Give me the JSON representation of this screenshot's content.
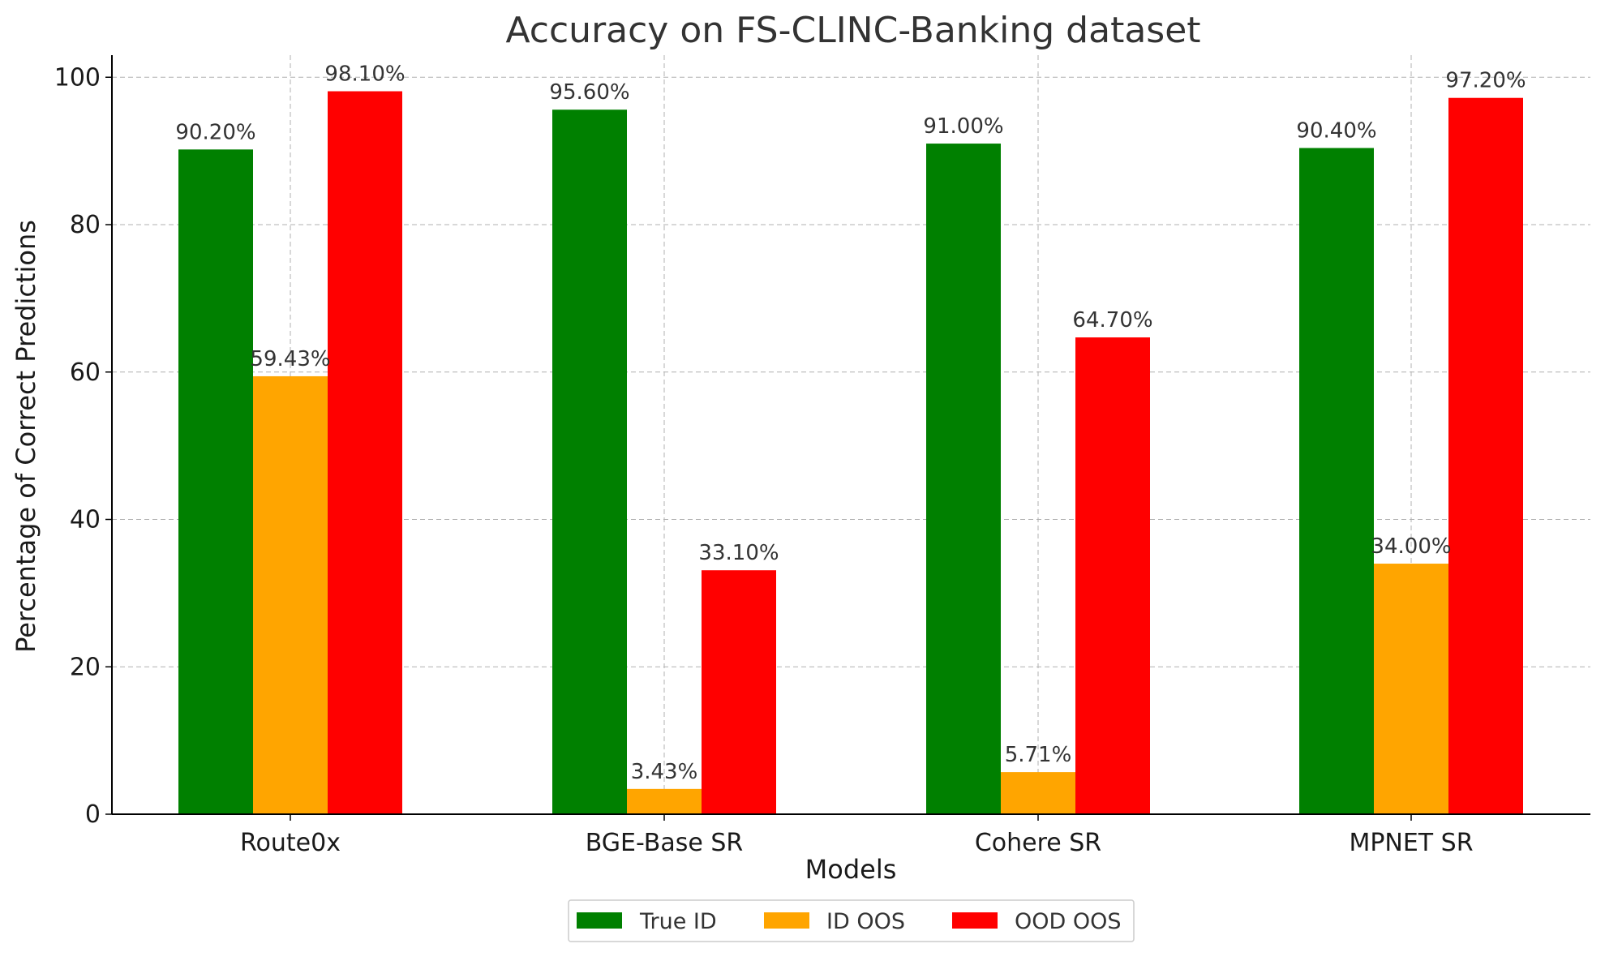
{
  "chart_data": {
    "type": "bar",
    "title": "Accuracy on FS-CLINC-Banking dataset",
    "xlabel": "Models",
    "ylabel": "Percentage of Correct Predictions",
    "categories": [
      "Route0x",
      "BGE-Base SR",
      "Cohere SR",
      "MPNET SR"
    ],
    "series": [
      {
        "name": "True ID",
        "color": "#008000",
        "values": [
          90.2,
          95.6,
          91.0,
          90.4
        ],
        "labels": [
          "90.20%",
          "95.60%",
          "91.00%",
          "90.40%"
        ]
      },
      {
        "name": "ID OOS",
        "color": "#FFA500",
        "values": [
          59.43,
          3.43,
          5.71,
          34.0
        ],
        "labels": [
          "59.43%",
          "3.43%",
          "5.71%",
          "34.00%"
        ]
      },
      {
        "name": "OOD OOS",
        "color": "#FF0000",
        "values": [
          98.1,
          33.1,
          64.7,
          97.2
        ],
        "labels": [
          "98.10%",
          "33.10%",
          "64.70%",
          "97.20%"
        ]
      }
    ],
    "yticks": [
      0,
      20,
      40,
      60,
      80,
      100
    ],
    "ytick_labels": [
      "0",
      "20",
      "40",
      "60",
      "80",
      "100"
    ],
    "ylim": [
      0,
      103
    ],
    "grid": true,
    "legend_position": "bottom-center"
  }
}
